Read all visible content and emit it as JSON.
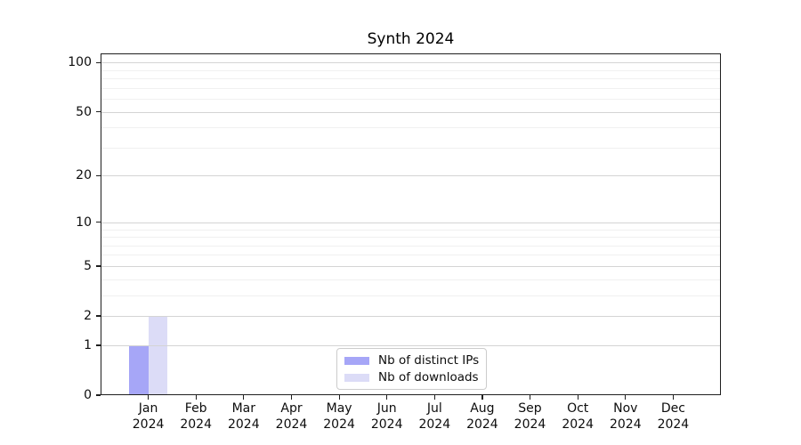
{
  "title": "Synth 2024",
  "chart_data": {
    "type": "bar",
    "title": "Synth 2024",
    "categories": [
      "Jan 2024",
      "Feb 2024",
      "Mar 2024",
      "Apr 2024",
      "May 2024",
      "Jun 2024",
      "Jul 2024",
      "Aug 2024",
      "Sep 2024",
      "Oct 2024",
      "Nov 2024",
      "Dec 2024"
    ],
    "series": [
      {
        "name": "Nb of distinct IPs",
        "color": "#a6a6f7",
        "values": [
          1,
          0,
          0,
          0,
          0,
          0,
          0,
          0,
          0,
          0,
          0,
          0
        ]
      },
      {
        "name": "Nb of downloads",
        "color": "#dcdcf7",
        "values": [
          2,
          0,
          0,
          0,
          0,
          0,
          0,
          0,
          0,
          0,
          0,
          0
        ]
      }
    ],
    "xlabel": "",
    "ylabel": "",
    "y_scale": "log1p",
    "y_major_ticks": [
      0,
      1,
      2,
      5,
      10,
      20,
      50,
      100
    ],
    "y_minor_gridlines": [
      3,
      4,
      6,
      7,
      8,
      9,
      30,
      40,
      60,
      70,
      80,
      90
    ],
    "ylim": [
      0,
      113.6
    ],
    "grid": "horizontal",
    "legend_position": "lower center"
  },
  "colors": {
    "major_grid": "#d4d4d4",
    "minor_grid": "#f0f0f0",
    "spine": "#1f1f1f",
    "legend_border": "#cccccc"
  }
}
